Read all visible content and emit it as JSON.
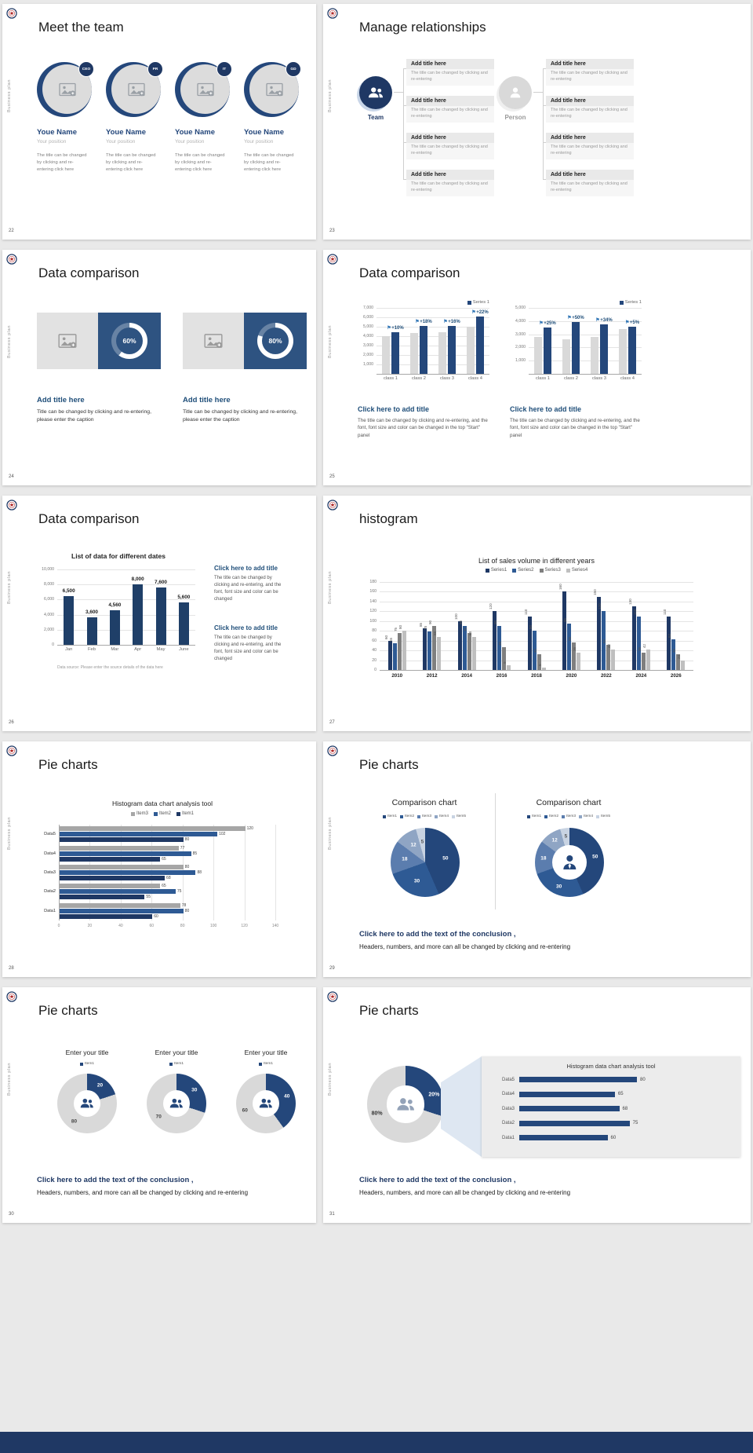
{
  "page": {
    "background": "#e9e9e9",
    "sidebar_text": "Business plan",
    "footer_bar_color": "#1f3864"
  },
  "common": {
    "conclusion_bold": "Click here to add the text of the conclusion ,",
    "conclusion_sub": "Headers, numbers, and more can all be changed by clicking and re-entering",
    "add_title": "Add title here",
    "click_title": "Click here to add title"
  },
  "slides": {
    "s22": {
      "number": "22",
      "title": "Meet the team",
      "member_caption": "The title can be changed by clicking and re-entering click here",
      "members": [
        {
          "badge": "CEO",
          "name": "Youe Name",
          "position": "Your position"
        },
        {
          "badge": "PR",
          "name": "Youe Name",
          "position": "Your position"
        },
        {
          "badge": "IT",
          "name": "Youe Name",
          "position": "Your position"
        },
        {
          "badge": "GD",
          "name": "Youe Name",
          "position": "Your position"
        }
      ]
    },
    "s23": {
      "number": "23",
      "title": "Manage relationships",
      "team_label": "Team",
      "person_label": "Person",
      "block_caption": "The title can be changed by clicking and re-entering"
    },
    "s24": {
      "number": "24",
      "title": "Data comparison",
      "panel_caption": "Title can be changed by clicking and re-entering, please enter the caption",
      "rings": [
        {
          "percent": "60%",
          "value": 60
        },
        {
          "percent": "80%",
          "value": 80
        }
      ]
    },
    "s25": {
      "number": "25",
      "title": "Data comparison",
      "block_caption": "The title can be changed by clicking and re-entering, and the font, font size and color can be changed in the top \"Start\" panel",
      "charts": [
        {
          "type": "bar",
          "legend": "Series 1",
          "legend_color": "#24477b",
          "yticks": [
            "7,000",
            "6,000",
            "5,000",
            "4,000",
            "3,000",
            "2,000",
            "1,000"
          ],
          "ymax": 7000,
          "categories": [
            "class 1",
            "class 2",
            "class 3",
            "class 4"
          ],
          "bars_gray": {
            "color": "#d9d9d9",
            "values": [
              4000,
              4300,
              4400,
              5000
            ]
          },
          "bars_blue": {
            "color": "#24477b",
            "values": [
              4400,
              5100,
              5100,
              6100
            ]
          },
          "bar_labels": [
            "+10%",
            "+18%",
            "+16%",
            "+22%"
          ]
        },
        {
          "type": "bar",
          "legend": "Series 1",
          "legend_color": "#24477b",
          "yticks": [
            "5,000",
            "4,000",
            "3,000",
            "2,000",
            "1,000"
          ],
          "ymax": 5000,
          "categories": [
            "class 1",
            "class 2",
            "class 3",
            "class 4"
          ],
          "bars_gray": {
            "color": "#d9d9d9",
            "values": [
              2800,
              2600,
              2800,
              3400
            ]
          },
          "bars_blue": {
            "color": "#24477b",
            "values": [
              3500,
              3900,
              3750,
              3570
            ]
          },
          "bar_labels": [
            "+25%",
            "+50%",
            "+34%",
            "+5%"
          ]
        }
      ]
    },
    "s26": {
      "number": "26",
      "title": "Data comparison",
      "block_caption": "The title can be changed by clicking and re-entering, and the font, font size and color can be changed",
      "chart": {
        "type": "bar",
        "chart_title": "List of data for different dates",
        "yticks": [
          "10,000",
          "8,000",
          "6,000",
          "4,000",
          "2,000",
          "0"
        ],
        "ymax": 10000,
        "categories": [
          "Jan",
          "Feb",
          "Mar",
          "Apr",
          "May",
          "June"
        ],
        "values": [
          6500,
          3600,
          4560,
          8000,
          7600,
          5600
        ],
        "value_labels": [
          "6,500",
          "3,600",
          "4,560",
          "8,000",
          "7,600",
          "5,600"
        ],
        "bar_color": "#1f3f68",
        "source_note": "Data source: Please enter the source details of the data here"
      }
    },
    "s27": {
      "number": "27",
      "title": "histogram",
      "chart": {
        "type": "bar",
        "chart_title": "List of sales volume in different years",
        "yticks": [
          "180",
          "160",
          "140",
          "120",
          "100",
          "80",
          "60",
          "40",
          "20",
          "0"
        ],
        "ymax": 180,
        "categories": [
          "2010",
          "2012",
          "2014",
          "2016",
          "2018",
          "2020",
          "2022",
          "2024",
          "2026"
        ],
        "series": [
          {
            "name": "Series1",
            "color": "#1f3864",
            "values": [
              60,
              85,
              100,
              120,
              110,
              160,
              150,
              130,
              110
            ]
          },
          {
            "name": "Series2",
            "color": "#2e5a94",
            "values": [
              55,
              78,
              90,
              90,
              80,
              95,
              120,
              110,
              62
            ]
          },
          {
            "name": "Series3",
            "color": "#7f7f7f",
            "values": [
              75,
              90,
              75,
              46,
              32,
              56,
              52,
              36,
              32
            ]
          },
          {
            "name": "Series4",
            "color": "#bfbfbf",
            "values": [
              80,
              68,
              68,
              9,
              5,
              36,
              42,
              42,
              20
            ]
          }
        ],
        "show_value_labels": true
      }
    },
    "s28": {
      "number": "28",
      "title": "Pie charts",
      "chart": {
        "type": "hbar",
        "chart_title": "Histogram data chart analysis tool",
        "xticks": [
          "0",
          "20",
          "40",
          "60",
          "80",
          "100",
          "120",
          "140"
        ],
        "xmax": 140,
        "categories": [
          "Data5",
          "Data4",
          "Data3",
          "Data2",
          "Data1"
        ],
        "series": [
          {
            "name": "Item3",
            "color": "#a6a6a6",
            "values": [
              120,
              77,
              80,
              65,
              78
            ]
          },
          {
            "name": "Item2",
            "color": "#2e5a94",
            "values": [
              102,
              85,
              88,
              75,
              80
            ]
          },
          {
            "name": "Item1",
            "color": "#1f3864",
            "values": [
              80,
              65,
              68,
              55,
              60
            ]
          }
        ]
      }
    },
    "s29": {
      "number": "29",
      "title": "Pie charts",
      "left_chart_title": "Comparison chart",
      "right_chart_title": "Comparison chart",
      "legend": [
        {
          "name": "Item1",
          "color": "#24477b"
        },
        {
          "name": "Item2",
          "color": "#2e5a94"
        },
        {
          "name": "Item3",
          "color": "#5b7dae"
        },
        {
          "name": "Item4",
          "color": "#8fa5c4"
        },
        {
          "name": "Item5",
          "color": "#c8d3e2"
        }
      ],
      "pie_chart": {
        "type": "pie",
        "values": [
          50,
          30,
          18,
          12,
          5
        ],
        "labels": [
          "50",
          "30",
          "18",
          "12",
          "5"
        ],
        "colors": [
          "#24477b",
          "#2e5a94",
          "#5b7dae",
          "#8fa5c4",
          "#c8d3e2"
        ],
        "label_colors": [
          "#fff",
          "#fff",
          "#fff",
          "#fff",
          "#555"
        ],
        "label_r": 0.6,
        "label_size": 6.5
      },
      "donut_chart": {
        "type": "pie",
        "values": [
          50,
          30,
          18,
          12,
          5
        ],
        "labels": [
          "50",
          "30",
          "18",
          "12",
          "5"
        ],
        "colors": [
          "#24477b",
          "#2e5a94",
          "#5b7dae",
          "#8fa5c4",
          "#c8d3e2"
        ],
        "label_colors": [
          "#fff",
          "#fff",
          "#fff",
          "#fff",
          "#555"
        ],
        "label_r": 0.76,
        "label_size": 6.5,
        "hole": 0.5,
        "center_icon": "businessman-icon",
        "icon_color": "#24477b"
      }
    },
    "s30": {
      "number": "30",
      "title": "Pie charts",
      "donuts": [
        {
          "chart_title": "Enter your title",
          "legend": [
            {
              "name": "Item1",
              "color": "#24477b"
            }
          ],
          "chart": {
            "type": "pie",
            "values": [
              20,
              80
            ],
            "labels": [
              "20",
              "80"
            ],
            "colors": [
              "#24477b",
              "#d9d9d9"
            ],
            "label_colors": [
              "#fff",
              "#444"
            ],
            "label_r": 0.74,
            "label_size": 6.5,
            "hole": 0.46,
            "center_icon": "people-icon",
            "icon_color": "#24477b"
          }
        },
        {
          "chart_title": "Enter your title",
          "legend": [
            {
              "name": "Item1",
              "color": "#24477b"
            }
          ],
          "chart": {
            "type": "pie",
            "values": [
              30,
              70
            ],
            "labels": [
              "30",
              "70"
            ],
            "colors": [
              "#24477b",
              "#d9d9d9"
            ],
            "label_colors": [
              "#fff",
              "#444"
            ],
            "label_r": 0.74,
            "label_size": 6.5,
            "hole": 0.46,
            "center_icon": "people-icon",
            "icon_color": "#24477b"
          }
        },
        {
          "chart_title": "Enter your title",
          "legend": [
            {
              "name": "Item1",
              "color": "#24477b"
            }
          ],
          "chart": {
            "type": "pie",
            "values": [
              40,
              60
            ],
            "labels": [
              "40",
              "60"
            ],
            "colors": [
              "#24477b",
              "#d9d9d9"
            ],
            "label_colors": [
              "#fff",
              "#444"
            ],
            "label_r": 0.74,
            "label_size": 6.5,
            "hole": 0.46,
            "center_icon": "people-icon",
            "icon_color": "#24477b"
          }
        }
      ]
    },
    "s31": {
      "number": "31",
      "title": "Pie charts",
      "donut": {
        "type": "pie",
        "values": [
          20,
          80
        ],
        "labels": [
          "20%",
          "80%"
        ],
        "colors": [
          "#24477b",
          "#d9d9d9"
        ],
        "label_colors": [
          "#fff",
          "#333"
        ],
        "label_r": 0.78,
        "label_size": 7,
        "hole": 0.48,
        "rotate": 36,
        "center_icon": "people-icon",
        "icon_color": "#93a2b8"
      },
      "panel_chart": {
        "type": "hbar",
        "chart_title": "Histogram data chart analysis tool",
        "categories": [
          "Data5",
          "Data4",
          "Data3",
          "Data2",
          "Data1"
        ],
        "values": [
          80,
          65,
          68,
          75,
          60
        ],
        "color": "#24477b"
      }
    }
  }
}
